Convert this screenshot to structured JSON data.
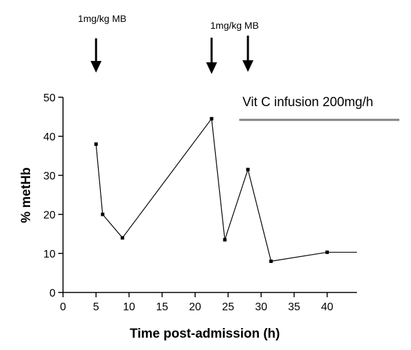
{
  "chart_data": {
    "type": "line",
    "xlabel": "Time post-admission (h)",
    "ylabel": "% metHb",
    "xlim": [
      0,
      44.5
    ],
    "ylim": [
      0,
      50
    ],
    "xticks": [
      0,
      5,
      10,
      15,
      20,
      25,
      30,
      35,
      40
    ],
    "yticks": [
      0,
      10,
      20,
      30,
      40,
      50
    ],
    "grid": false,
    "series": [
      {
        "x": [
          5,
          6,
          9,
          22.5,
          24.5,
          28,
          31.5,
          40,
          44.5
        ],
        "y": [
          38,
          20,
          14,
          44.5,
          13.5,
          31.5,
          8,
          10.3,
          10.3
        ],
        "markers": [
          true,
          true,
          true,
          true,
          true,
          true,
          true,
          true,
          false
        ],
        "color": "#000000"
      }
    ],
    "annotations": [
      {
        "type": "arrow",
        "x": 5,
        "label": "1mg/kg MB"
      },
      {
        "type": "arrow",
        "x": 22.5,
        "label": ""
      },
      {
        "type": "arrow",
        "x": 28,
        "label": ""
      },
      {
        "type": "label",
        "text": "1mg/kg MB",
        "between_arrows_x": [
          22.5,
          28
        ]
      },
      {
        "type": "bar",
        "label": "Vit C infusion 200mg/h",
        "x_start": 27,
        "x_end": 44.5,
        "color": "#808080"
      }
    ]
  }
}
